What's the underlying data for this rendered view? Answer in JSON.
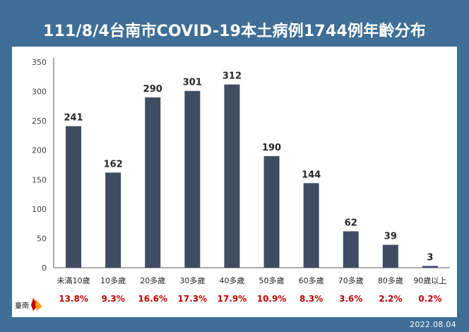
{
  "header": {
    "title": "111/8/4台南市COVID-19本土病例1744例年齡分布"
  },
  "footer": {
    "date": "2022.08.04"
  },
  "logo": {
    "text": "臺南"
  },
  "colors": {
    "background": "#3f6e96",
    "bar": "#3f4d63",
    "percent": "#c00000",
    "axis": "#595959"
  },
  "chart_data": {
    "type": "bar",
    "title": "111/8/4台南市COVID-19本土病例1744例年齡分布",
    "xlabel": "",
    "ylabel": "",
    "ylim": [
      0,
      350
    ],
    "yticks": [
      0,
      50,
      100,
      150,
      200,
      250,
      300,
      350
    ],
    "categories": [
      "未滿10歲",
      "10多歲",
      "20多歲",
      "30多歲",
      "40多歲",
      "50多歲",
      "60多歲",
      "70多歲",
      "80多歲",
      "90歲以上"
    ],
    "values": [
      241,
      162,
      290,
      301,
      312,
      190,
      144,
      62,
      39,
      3
    ],
    "percentages": [
      "13.8%",
      "9.3%",
      "16.6%",
      "17.3%",
      "17.9%",
      "10.9%",
      "8.3%",
      "3.6%",
      "2.2%",
      "0.2%"
    ],
    "grid": false
  }
}
